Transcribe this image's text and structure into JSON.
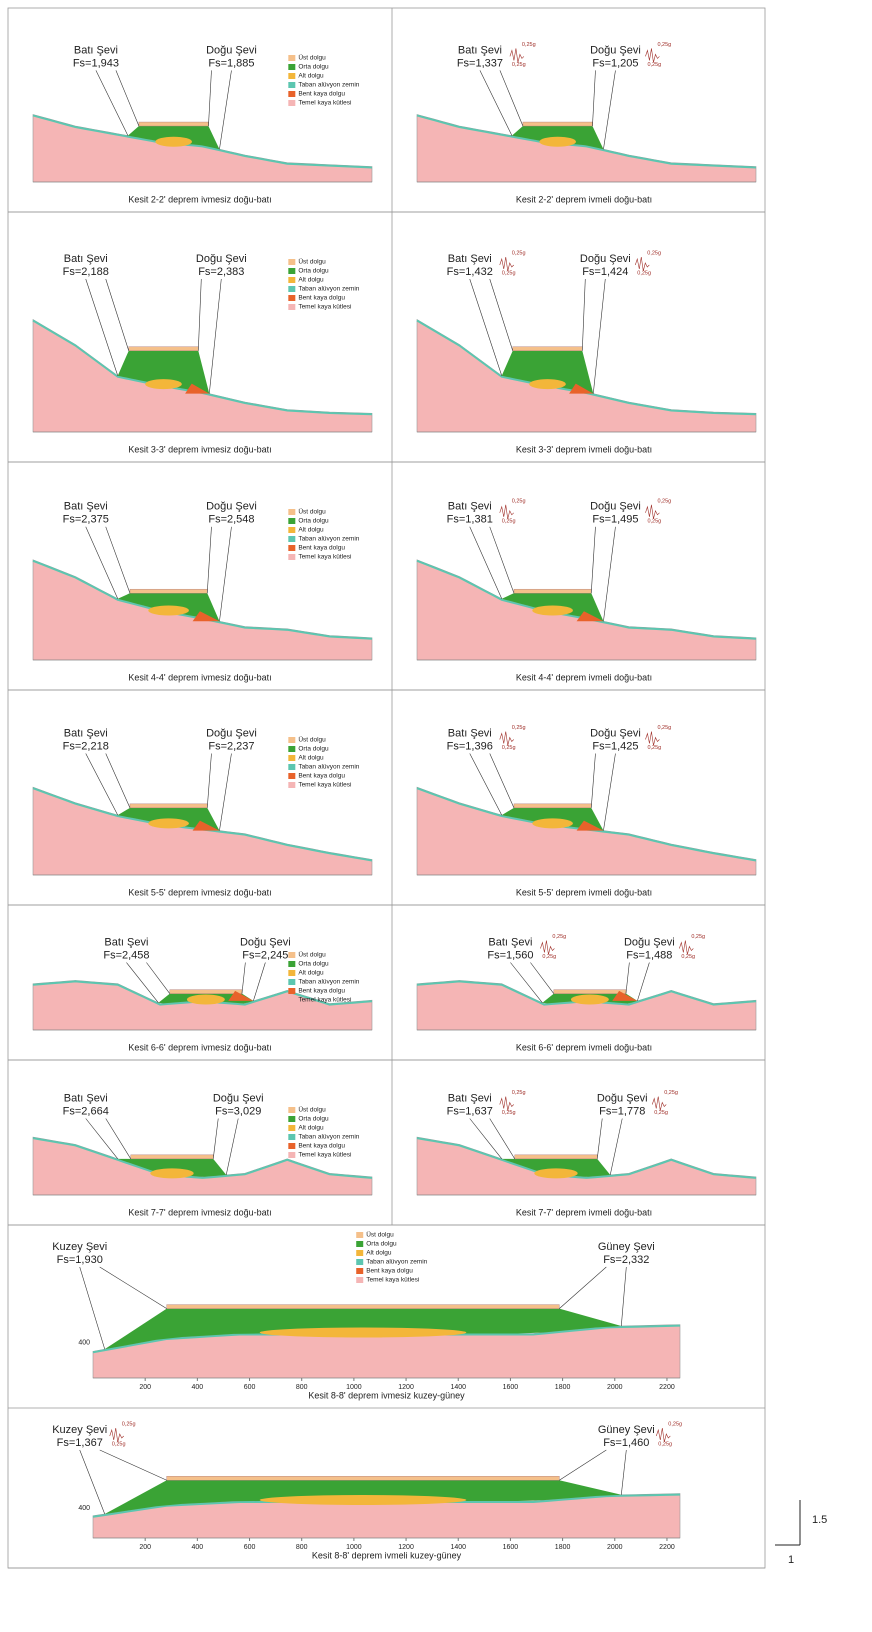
{
  "legend_items": [
    {
      "label": "Üst dolgu",
      "color": "#f5c08a"
    },
    {
      "label": "Orta dolgu",
      "color": "#3aa335"
    },
    {
      "label": "Alt dolgu",
      "color": "#f3b63a"
    },
    {
      "label": "Taban alüvyon zemin",
      "color": "#5cc6b0"
    },
    {
      "label": "Bent kaya dolgu",
      "color": "#e8622a"
    },
    {
      "label": "Temel kaya kütlesi",
      "color": "#f5b5b5"
    }
  ],
  "panels": [
    {
      "caption": "Kesit 2-2' deprem ivmesiz doğu-batı",
      "legend": true,
      "left": {
        "name": "Batı Şevi",
        "fs": "Fs=1,943"
      },
      "right": {
        "name": "Doğu Şevi",
        "fs": "Fs=1,885"
      }
    },
    {
      "caption": "Kesit 2-2' deprem ivmeli doğu-batı",
      "legend": false,
      "left": {
        "name": "Batı Şevi",
        "fs": "Fs=1,337",
        "acceleration": [
          "0,25g",
          "0,25g"
        ]
      },
      "right": {
        "name": "Doğu Şevi",
        "fs": "Fs=1,205",
        "acceleration": [
          "0,25g",
          "0,25g"
        ]
      }
    },
    {
      "caption": "Kesit 3-3' deprem ivmesiz doğu-batı",
      "legend": true,
      "left": {
        "name": "Batı Şevi",
        "fs": "Fs=2,188"
      },
      "right": {
        "name": "Doğu Şevi",
        "fs": "Fs=2,383"
      }
    },
    {
      "caption": "Kesit 3-3' deprem ivmeli doğu-batı",
      "legend": false,
      "left": {
        "name": "Batı Şevi",
        "fs": "Fs=1,432",
        "acceleration": [
          "0,25g",
          "0,25g"
        ]
      },
      "right": {
        "name": "Doğu Şevi",
        "fs": "Fs=1,424",
        "acceleration": [
          "0,25g",
          "0,25g"
        ]
      }
    },
    {
      "caption": "Kesit 4-4' deprem ivmesiz doğu-batı",
      "legend": true,
      "left": {
        "name": "Batı Şevi",
        "fs": "Fs=2,375"
      },
      "right": {
        "name": "Doğu Şevi",
        "fs": "Fs=2,548"
      }
    },
    {
      "caption": "Kesit 4-4' deprem ivmeli doğu-batı",
      "legend": false,
      "left": {
        "name": "Batı Şevi",
        "fs": "Fs=1,381",
        "acceleration": [
          "0,25g",
          "0,25g"
        ]
      },
      "right": {
        "name": "Doğu Şevi",
        "fs": "Fs=1,495",
        "acceleration": [
          "0,25g",
          "0,25g"
        ]
      }
    },
    {
      "caption": "Kesit 5-5' deprem ivmesiz doğu-batı",
      "legend": true,
      "left": {
        "name": "Batı Şevi",
        "fs": "Fs=2,218"
      },
      "right": {
        "name": "Doğu Şevi",
        "fs": "Fs=2,237"
      }
    },
    {
      "caption": "Kesit 5-5' deprem ivmeli doğu-batı",
      "legend": false,
      "left": {
        "name": "Batı Şevi",
        "fs": "Fs=1,396",
        "acceleration": [
          "0,25g",
          "0,25g"
        ]
      },
      "right": {
        "name": "Doğu Şevi",
        "fs": "Fs=1,425",
        "acceleration": [
          "0,25g",
          "0,25g"
        ]
      }
    },
    {
      "caption": "Kesit 6-6' deprem ivmesiz doğu-batı",
      "legend": true,
      "left": {
        "name": "Batı Şevi",
        "fs": "Fs=2,458"
      },
      "right": {
        "name": "Doğu Şevi",
        "fs": "Fs=2,245"
      }
    },
    {
      "caption": "Kesit 6-6' deprem ivmeli doğu-batı",
      "legend": false,
      "left": {
        "name": "Batı Şevi",
        "fs": "Fs=1,560",
        "acceleration": [
          "0,25g",
          "0,25g"
        ]
      },
      "right": {
        "name": "Doğu Şevi",
        "fs": "Fs=1,488",
        "acceleration": [
          "0,25g",
          "0,25g"
        ]
      }
    },
    {
      "caption": "Kesit 7-7' deprem ivmesiz doğu-batı",
      "legend": true,
      "left": {
        "name": "Batı Şevi",
        "fs": "Fs=2,664"
      },
      "right": {
        "name": "Doğu Şevi",
        "fs": "Fs=3,029"
      }
    },
    {
      "caption": "Kesit 7-7' deprem ivmeli doğu-batı",
      "legend": false,
      "left": {
        "name": "Batı Şevi",
        "fs": "Fs=1,637",
        "acceleration": [
          "0,25g",
          "0,25g"
        ]
      },
      "right": {
        "name": "Doğu Şevi",
        "fs": "Fs=1,778",
        "acceleration": [
          "0,25g",
          "0,25g"
        ]
      }
    },
    {
      "caption": "Kesit 8-8' deprem ivmesiz kuzey-güney",
      "legend": true,
      "left": {
        "name": "Kuzey Şevi",
        "fs": "Fs=1,930"
      },
      "right": {
        "name": "Güney Şevi",
        "fs": "Fs=2,332"
      },
      "xlim": [
        0,
        2250
      ],
      "xticks": [
        200,
        400,
        600,
        800,
        1000,
        1200,
        1400,
        1600,
        1800,
        2000,
        2200
      ],
      "yticks": [
        400
      ]
    },
    {
      "caption": "Kesit 8-8' deprem ivmeli kuzey-güney",
      "legend": false,
      "left": {
        "name": "Kuzey Şevi",
        "fs": "Fs=1,367",
        "acceleration": [
          "0,25g",
          "0,25g"
        ]
      },
      "right": {
        "name": "Güney Şevi",
        "fs": "Fs=1,460",
        "acceleration": [
          "0,25g",
          "0,25g"
        ]
      },
      "xlim": [
        0,
        2250
      ],
      "xticks": [
        200,
        400,
        600,
        800,
        1000,
        1200,
        1400,
        1600,
        1800,
        2000,
        2200
      ],
      "yticks": [
        400
      ]
    }
  ],
  "scale": {
    "vertical": "1.5",
    "horizontal": "1"
  }
}
